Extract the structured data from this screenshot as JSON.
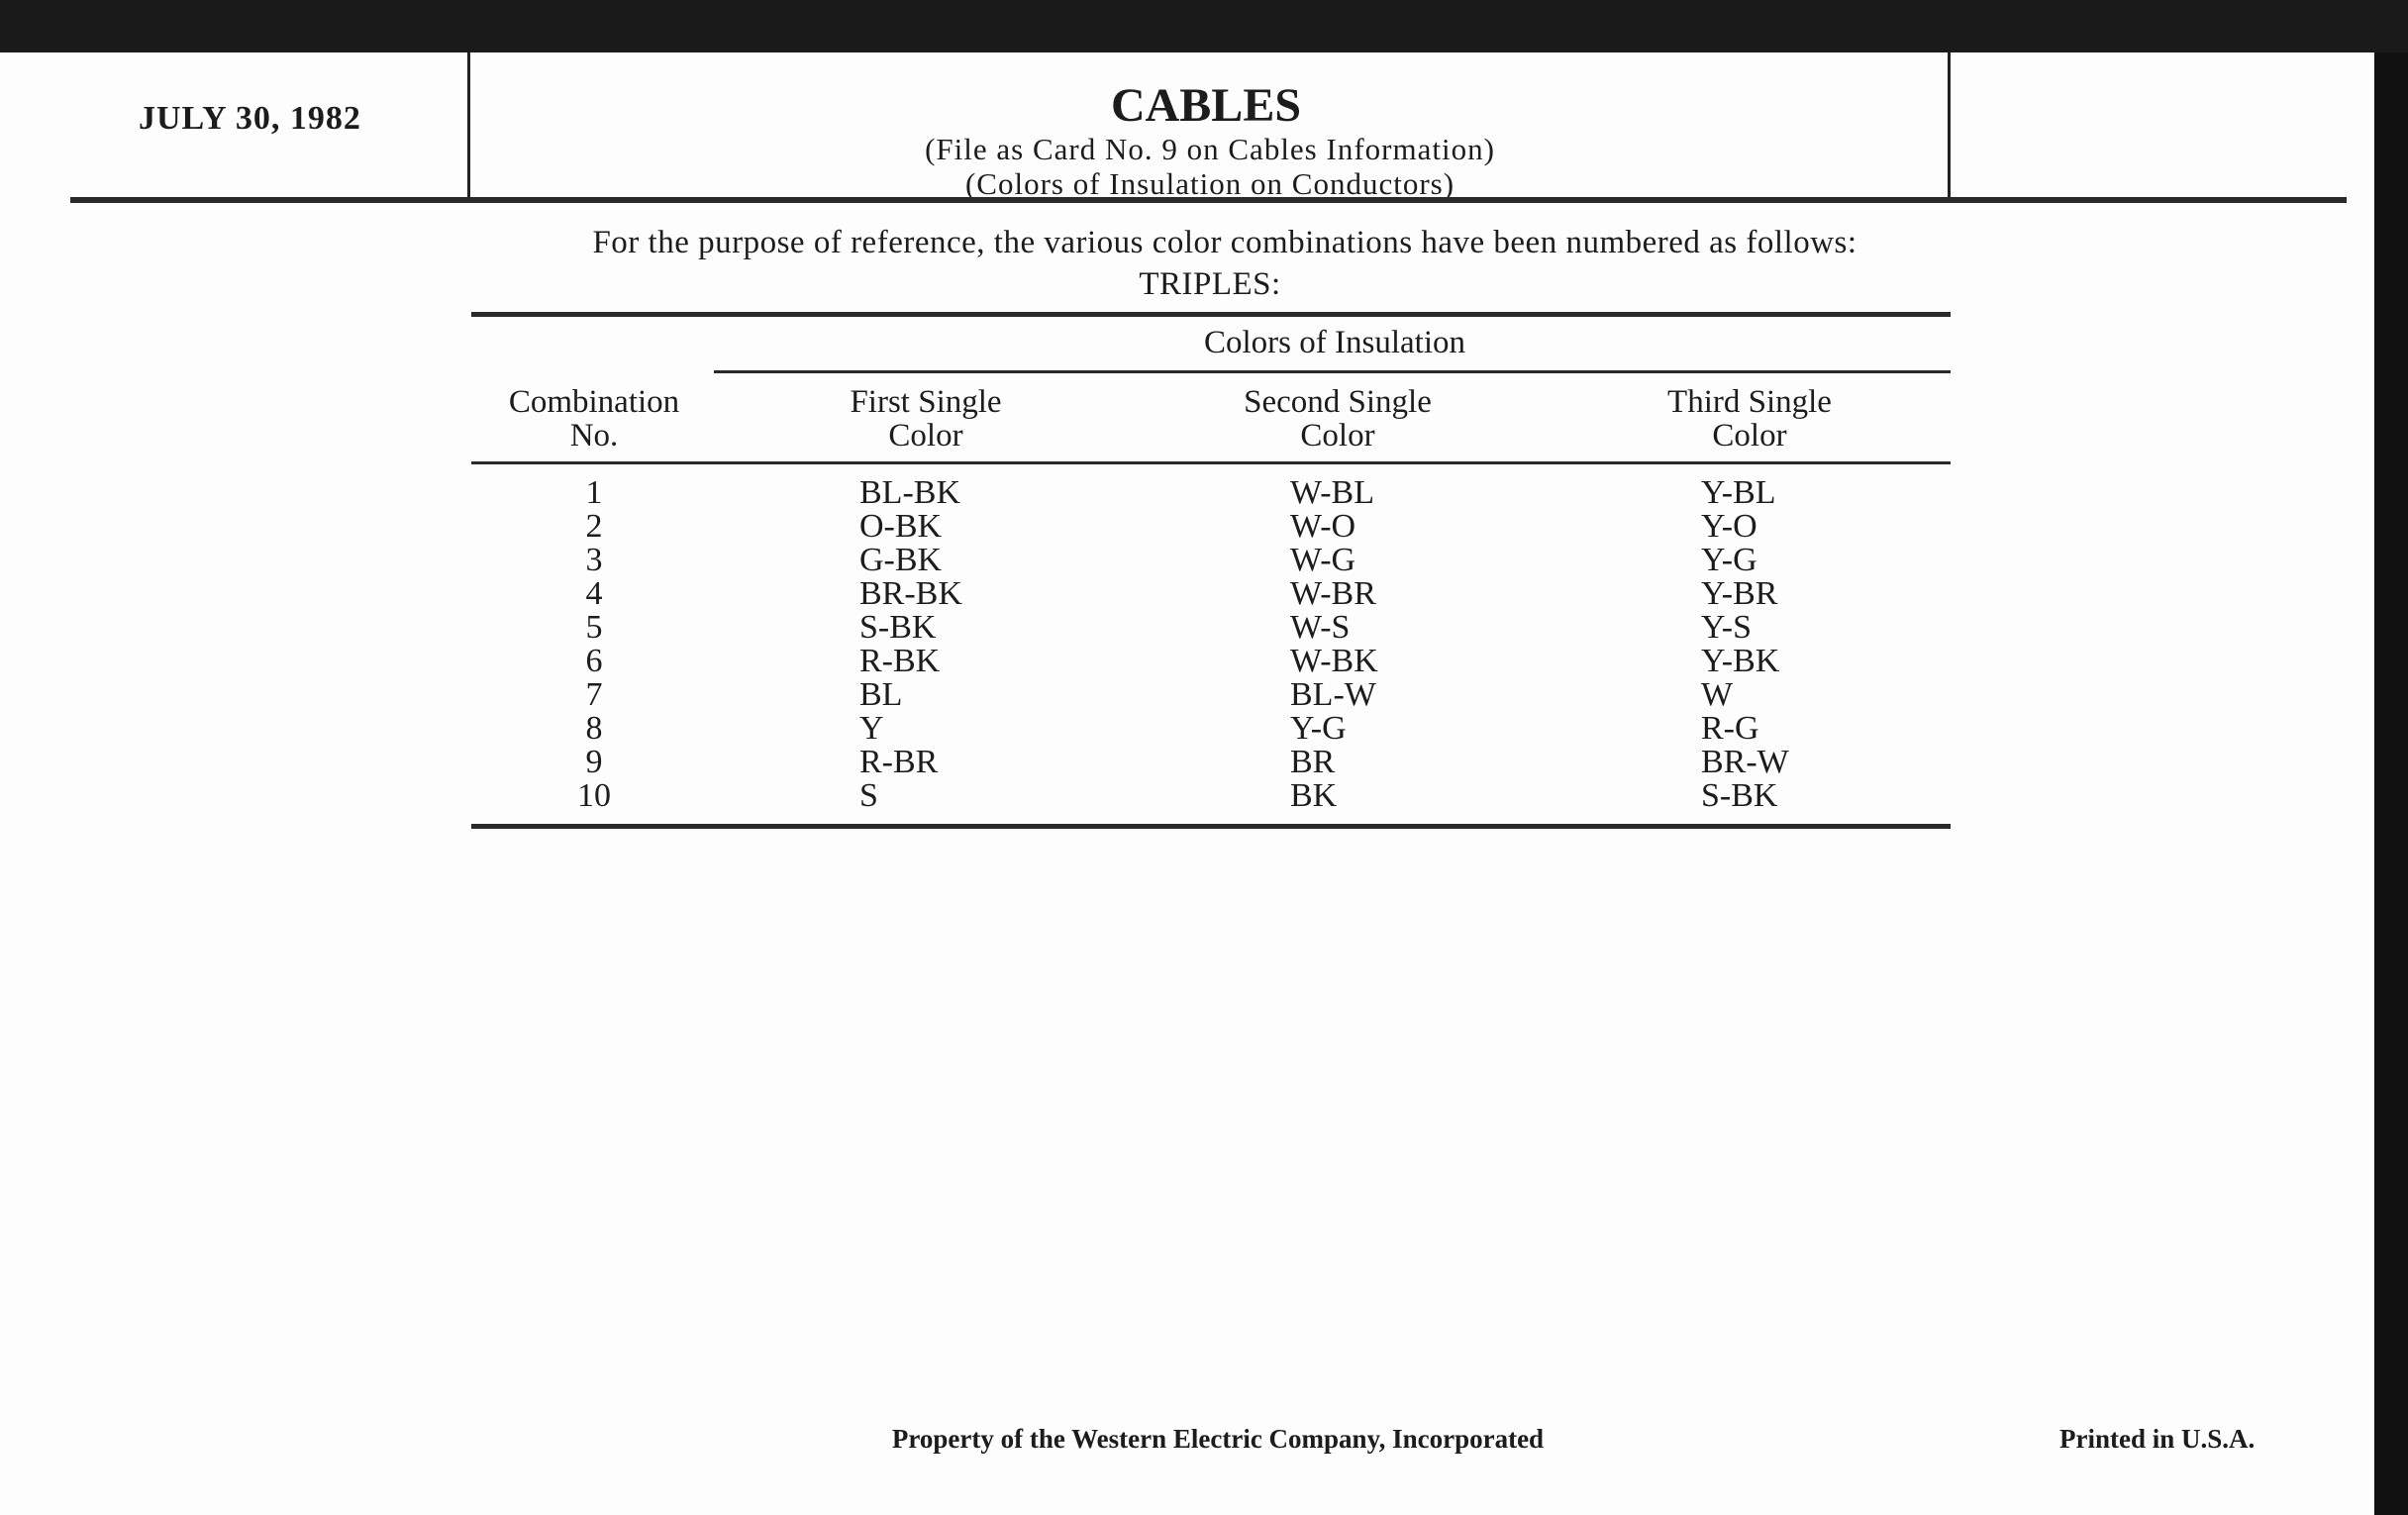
{
  "header": {
    "date": "JULY 30, 1982",
    "title": "CABLES",
    "subtitle_1": "(File as Card No. 9 on Cables Information)",
    "subtitle_2": "(Colors of Insulation on Conductors)"
  },
  "intro": "For the purpose of reference, the various color combinations have been numbered as follows:",
  "section": "TRIPLES:",
  "table": {
    "group_header": "Colors of Insulation",
    "columns": [
      {
        "line1": "Combination",
        "line2": "No."
      },
      {
        "line1": "First Single",
        "line2": "Color"
      },
      {
        "line1": "Second Single",
        "line2": "Color"
      },
      {
        "line1": "Third Single",
        "line2": "Color"
      }
    ],
    "rows": [
      [
        "1",
        "BL-BK",
        "W-BL",
        "Y-BL"
      ],
      [
        "2",
        "O-BK",
        "W-O",
        "Y-O"
      ],
      [
        "3",
        "G-BK",
        "W-G",
        "Y-G"
      ],
      [
        "4",
        "BR-BK",
        "W-BR",
        "Y-BR"
      ],
      [
        "5",
        "S-BK",
        "W-S",
        "Y-S"
      ],
      [
        "6",
        "R-BK",
        "W-BK",
        "Y-BK"
      ],
      [
        "7",
        "BL",
        "BL-W",
        "W"
      ],
      [
        "8",
        "Y",
        "Y-G",
        "R-G"
      ],
      [
        "9",
        "R-BR",
        "BR",
        "BR-W"
      ],
      [
        "10",
        "S",
        "BK",
        "S-BK"
      ]
    ]
  },
  "footer": {
    "property": "Property of the Western Electric Company, Incorporated",
    "printed": "Printed in U.S.A."
  }
}
